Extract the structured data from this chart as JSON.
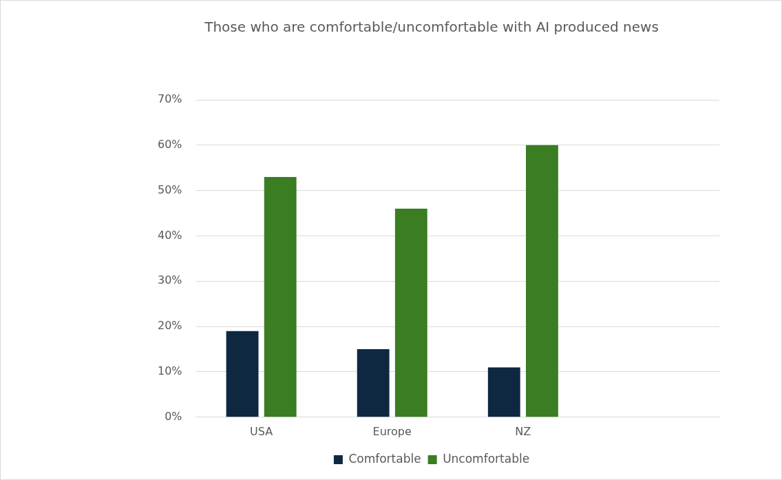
{
  "chart_data": {
    "type": "bar",
    "title": "Those who are comfortable/uncomfortable with AI produced news",
    "categories": [
      "USA",
      "Europe",
      "NZ",
      null
    ],
    "series": [
      {
        "name": "Comfortable",
        "color": "#0e2841",
        "values": [
          19,
          15,
          11,
          null
        ]
      },
      {
        "name": "Uncomfortable",
        "color": "#3a7d22",
        "values": [
          53,
          46,
          60,
          null
        ]
      }
    ],
    "ylim": [
      0,
      70
    ],
    "yticks": [
      {
        "value": 0,
        "label": "0%"
      },
      {
        "value": 10,
        "label": "10%"
      },
      {
        "value": 20,
        "label": "20%"
      },
      {
        "value": 30,
        "label": "30%"
      },
      {
        "value": 40,
        "label": "40%"
      },
      {
        "value": 50,
        "label": "50%"
      },
      {
        "value": 60,
        "label": "60%"
      },
      {
        "value": 70,
        "label": "70%"
      }
    ],
    "grid": "y",
    "legend": "bottom"
  }
}
